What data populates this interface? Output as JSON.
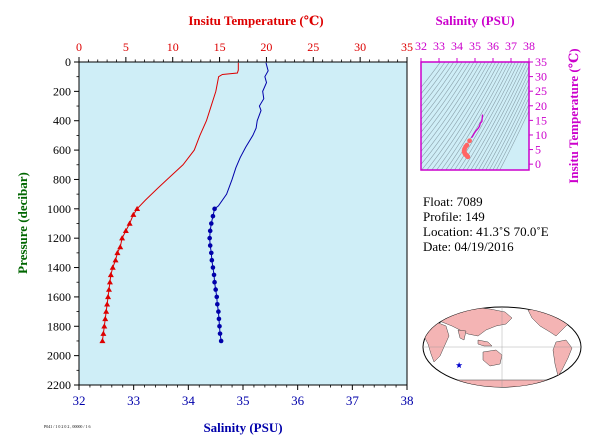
{
  "chart_data": [
    {
      "type": "line",
      "name": "profile",
      "title": "",
      "top_axis": {
        "label": "Insitu Temperature (℃)",
        "color": "#dd0000",
        "range": [
          0,
          35
        ],
        "ticks": [
          0,
          5,
          10,
          15,
          20,
          25,
          30,
          35
        ]
      },
      "bottom_axis": {
        "label": "Salinity (PSU)",
        "color": "#0000aa",
        "range": [
          32,
          38
        ],
        "ticks": [
          32,
          33,
          34,
          35,
          36,
          37,
          38
        ]
      },
      "y_axis": {
        "label": "Pressure (decibar)",
        "color": "#006600",
        "range": [
          0,
          2200
        ],
        "ticks": [
          0,
          200,
          400,
          600,
          800,
          1000,
          1200,
          1400,
          1600,
          1800,
          2000,
          2200
        ],
        "inverted": true
      },
      "series": [
        {
          "axis": "top",
          "color": "#dd0000",
          "points": [
            [
              17.0,
              5
            ],
            [
              17.0,
              55
            ],
            [
              16.9,
              75
            ],
            [
              15.3,
              85
            ],
            [
              14.9,
              100
            ],
            [
              14.6,
              200
            ],
            [
              14.4,
              240
            ],
            [
              14.1,
              300
            ],
            [
              13.6,
              400
            ],
            [
              12.9,
              500
            ],
            [
              12.3,
              600
            ],
            [
              11.1,
              700
            ],
            [
              9.4,
              800
            ],
            [
              8.4,
              860
            ],
            [
              7.1,
              940
            ],
            [
              6.2,
              1000
            ],
            [
              5.8,
              1040
            ],
            [
              5.4,
              1100
            ],
            [
              5.0,
              1150
            ],
            [
              4.6,
              1200
            ],
            [
              4.4,
              1260
            ],
            [
              4.1,
              1300
            ],
            [
              3.9,
              1350
            ],
            [
              3.6,
              1400
            ],
            [
              3.4,
              1450
            ],
            [
              3.3,
              1500
            ],
            [
              3.2,
              1550
            ],
            [
              3.1,
              1600
            ],
            [
              3.0,
              1650
            ],
            [
              2.9,
              1700
            ],
            [
              2.8,
              1750
            ],
            [
              2.7,
              1800
            ],
            [
              2.6,
              1850
            ],
            [
              2.5,
              1900
            ]
          ],
          "marker_start": 1000,
          "marker": "triangle"
        },
        {
          "axis": "bottom",
          "color": "#0000aa",
          "points": [
            [
              35.42,
              5
            ],
            [
              35.46,
              60
            ],
            [
              35.4,
              100
            ],
            [
              35.43,
              140
            ],
            [
              35.36,
              200
            ],
            [
              35.38,
              250
            ],
            [
              35.3,
              300
            ],
            [
              35.33,
              330
            ],
            [
              35.26,
              400
            ],
            [
              35.24,
              450
            ],
            [
              35.18,
              500
            ],
            [
              35.05,
              580
            ],
            [
              34.95,
              650
            ],
            [
              34.87,
              720
            ],
            [
              34.8,
              800
            ],
            [
              34.7,
              900
            ],
            [
              34.55,
              980
            ],
            [
              34.48,
              1000
            ],
            [
              34.45,
              1050
            ],
            [
              34.42,
              1100
            ],
            [
              34.4,
              1150
            ],
            [
              34.39,
              1200
            ],
            [
              34.4,
              1250
            ],
            [
              34.42,
              1300
            ],
            [
              34.43,
              1350
            ],
            [
              34.45,
              1400
            ],
            [
              34.47,
              1450
            ],
            [
              34.48,
              1500
            ],
            [
              34.5,
              1550
            ],
            [
              34.52,
              1600
            ],
            [
              34.53,
              1650
            ],
            [
              34.55,
              1700
            ],
            [
              34.56,
              1750
            ],
            [
              34.57,
              1800
            ],
            [
              34.58,
              1850
            ],
            [
              34.6,
              1900
            ]
          ],
          "marker_start": 1000,
          "marker": "dot"
        }
      ]
    },
    {
      "type": "scatter",
      "name": "ts-diagram",
      "title": "",
      "top_axis": {
        "label": "Salinity (PSU)",
        "color": "#cc00cc",
        "range": [
          32,
          38
        ],
        "ticks": [
          32,
          33,
          34,
          35,
          36,
          37,
          38
        ]
      },
      "right_axis": {
        "label": "Insitu Temperature (℃)",
        "color": "#cc00cc",
        "range": [
          -2,
          35
        ],
        "ticks": [
          0,
          5,
          10,
          15,
          20,
          25,
          30,
          35
        ]
      },
      "grid": true,
      "series": [
        {
          "color": "#cc00cc",
          "points": [
            [
              35.42,
              17.0
            ],
            [
              35.38,
              14.6
            ],
            [
              35.3,
              14.1
            ],
            [
              35.25,
              13.0
            ],
            [
              35.18,
              12.3
            ],
            [
              35.05,
              11.4
            ],
            [
              34.95,
              10.5
            ],
            [
              34.87,
              9.6
            ],
            [
              34.8,
              9.0
            ]
          ]
        },
        {
          "color": "#ff6666",
          "points": [
            [
              34.7,
              8.0
            ],
            [
              34.55,
              6.5
            ],
            [
              34.48,
              6.0
            ],
            [
              34.42,
              5.2
            ],
            [
              34.4,
              4.6
            ],
            [
              34.4,
              4.2
            ],
            [
              34.43,
              3.8
            ],
            [
              34.45,
              3.5
            ],
            [
              34.48,
              3.3
            ],
            [
              34.52,
              3.1
            ],
            [
              34.55,
              2.9
            ],
            [
              34.57,
              2.7
            ],
            [
              34.6,
              2.5
            ]
          ]
        }
      ]
    }
  ],
  "info": {
    "float": "Float:  7089",
    "profile": "Profile:  149",
    "location": "Location:  41.3˚S  70.0˚E",
    "date": "Date:  04/19/2016"
  },
  "footer_note": "P041 / 1 0 2 0 2 , 00000 / 1 6",
  "map": {
    "land_color": "#f4b4b4",
    "ocean_color": "#ffffff",
    "marker_color": "#0000cc",
    "marker_lon": 70.0,
    "marker_lat": -41.3
  }
}
